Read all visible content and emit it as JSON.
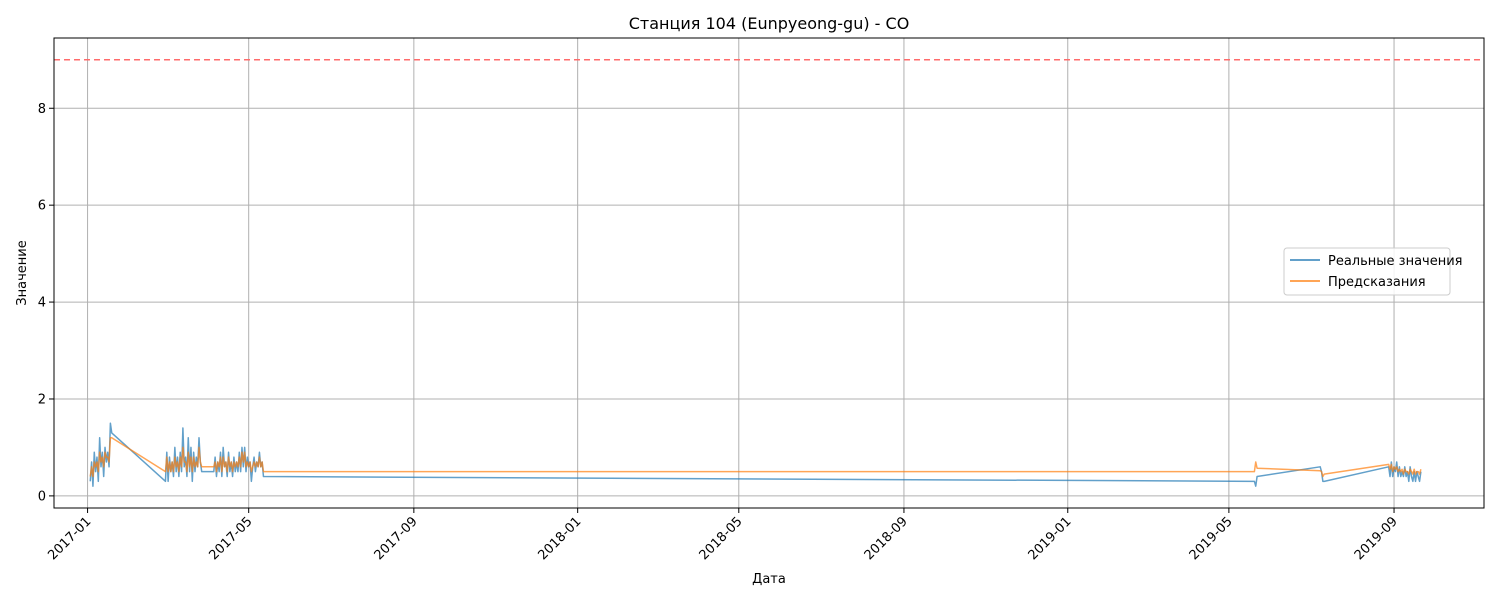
{
  "chart_data": {
    "type": "line",
    "title": "Станция 104 (Eunpyeong-gu) - CO",
    "xlabel": "Дата",
    "ylabel": "Значение",
    "xlim": [
      "2016-12-07",
      "2019-11-07"
    ],
    "ylim": [
      -0.25,
      9.45
    ],
    "x_ticks": [
      "2017-01",
      "2017-05",
      "2017-09",
      "2018-01",
      "2018-05",
      "2018-09",
      "2019-01",
      "2019-05",
      "2019-09"
    ],
    "y_ticks": [
      0,
      2,
      4,
      6,
      8
    ],
    "grid": true,
    "legend_position": "center-right",
    "threshold_line": {
      "value": 9,
      "style": "dashed",
      "color": "#ff6b6b"
    },
    "series": [
      {
        "name": "Реальные значения",
        "color": "#1f77b4",
        "points": [
          [
            "2017-01-03",
            0.3
          ],
          [
            "2017-01-04",
            0.7
          ],
          [
            "2017-01-05",
            0.2
          ],
          [
            "2017-01-06",
            0.9
          ],
          [
            "2017-01-07",
            0.5
          ],
          [
            "2017-01-08",
            0.8
          ],
          [
            "2017-01-09",
            0.3
          ],
          [
            "2017-01-10",
            1.2
          ],
          [
            "2017-01-11",
            0.6
          ],
          [
            "2017-01-12",
            0.9
          ],
          [
            "2017-01-13",
            0.4
          ],
          [
            "2017-01-14",
            1.0
          ],
          [
            "2017-01-15",
            0.7
          ],
          [
            "2017-01-16",
            0.9
          ],
          [
            "2017-01-17",
            0.6
          ],
          [
            "2017-01-18",
            1.5
          ],
          [
            "2017-01-19",
            1.3
          ],
          [
            "2017-02-28",
            0.3
          ],
          [
            "2017-03-01",
            0.9
          ],
          [
            "2017-03-02",
            0.3
          ],
          [
            "2017-03-03",
            0.8
          ],
          [
            "2017-03-04",
            0.5
          ],
          [
            "2017-03-05",
            0.7
          ],
          [
            "2017-03-06",
            0.4
          ],
          [
            "2017-03-07",
            1.0
          ],
          [
            "2017-03-08",
            0.5
          ],
          [
            "2017-03-09",
            0.8
          ],
          [
            "2017-03-10",
            0.4
          ],
          [
            "2017-03-11",
            0.9
          ],
          [
            "2017-03-12",
            0.5
          ],
          [
            "2017-03-13",
            1.4
          ],
          [
            "2017-03-14",
            0.6
          ],
          [
            "2017-03-15",
            0.8
          ],
          [
            "2017-03-16",
            0.4
          ],
          [
            "2017-03-17",
            1.2
          ],
          [
            "2017-03-18",
            0.5
          ],
          [
            "2017-03-19",
            1.0
          ],
          [
            "2017-03-20",
            0.3
          ],
          [
            "2017-03-21",
            0.9
          ],
          [
            "2017-03-22",
            0.5
          ],
          [
            "2017-03-23",
            0.8
          ],
          [
            "2017-03-24",
            0.6
          ],
          [
            "2017-03-25",
            1.2
          ],
          [
            "2017-03-26",
            0.7
          ],
          [
            "2017-03-27",
            0.5
          ],
          [
            "2017-04-05",
            0.5
          ],
          [
            "2017-04-06",
            0.8
          ],
          [
            "2017-04-07",
            0.4
          ],
          [
            "2017-04-08",
            0.7
          ],
          [
            "2017-04-09",
            0.5
          ],
          [
            "2017-04-10",
            0.9
          ],
          [
            "2017-04-11",
            0.4
          ],
          [
            "2017-04-12",
            1.0
          ],
          [
            "2017-04-13",
            0.6
          ],
          [
            "2017-04-14",
            0.7
          ],
          [
            "2017-04-15",
            0.4
          ],
          [
            "2017-04-16",
            0.9
          ],
          [
            "2017-04-17",
            0.5
          ],
          [
            "2017-04-18",
            0.7
          ],
          [
            "2017-04-19",
            0.4
          ],
          [
            "2017-04-20",
            0.8
          ],
          [
            "2017-04-21",
            0.5
          ],
          [
            "2017-04-22",
            0.7
          ],
          [
            "2017-04-23",
            0.5
          ],
          [
            "2017-04-24",
            0.9
          ],
          [
            "2017-04-25",
            0.5
          ],
          [
            "2017-04-26",
            1.0
          ],
          [
            "2017-04-27",
            0.6
          ],
          [
            "2017-04-28",
            1.0
          ],
          [
            "2017-04-29",
            0.5
          ],
          [
            "2017-04-30",
            0.8
          ],
          [
            "2017-05-01",
            0.6
          ],
          [
            "2017-05-02",
            0.7
          ],
          [
            "2017-05-03",
            0.3
          ],
          [
            "2017-05-04",
            0.6
          ],
          [
            "2017-05-05",
            0.8
          ],
          [
            "2017-05-06",
            0.5
          ],
          [
            "2017-05-07",
            0.7
          ],
          [
            "2017-05-08",
            0.6
          ],
          [
            "2017-05-09",
            0.9
          ],
          [
            "2017-05-10",
            0.6
          ],
          [
            "2017-05-11",
            0.7
          ],
          [
            "2017-05-12",
            0.4
          ],
          [
            "2019-05-20",
            0.3
          ],
          [
            "2019-05-21",
            0.2
          ],
          [
            "2019-05-22",
            0.4
          ],
          [
            "2019-07-08",
            0.6
          ],
          [
            "2019-07-09",
            0.5
          ],
          [
            "2019-07-10",
            0.3
          ],
          [
            "2019-07-11",
            0.3
          ],
          [
            "2019-08-28",
            0.6
          ],
          [
            "2019-08-29",
            0.4
          ],
          [
            "2019-08-30",
            0.7
          ],
          [
            "2019-08-31",
            0.4
          ],
          [
            "2019-09-01",
            0.6
          ],
          [
            "2019-09-02",
            0.5
          ],
          [
            "2019-09-03",
            0.7
          ],
          [
            "2019-09-04",
            0.4
          ],
          [
            "2019-09-05",
            0.6
          ],
          [
            "2019-09-06",
            0.4
          ],
          [
            "2019-09-07",
            0.5
          ],
          [
            "2019-09-08",
            0.4
          ],
          [
            "2019-09-09",
            0.6
          ],
          [
            "2019-09-10",
            0.4
          ],
          [
            "2019-09-11",
            0.5
          ],
          [
            "2019-09-12",
            0.3
          ],
          [
            "2019-09-13",
            0.6
          ],
          [
            "2019-09-14",
            0.4
          ],
          [
            "2019-09-15",
            0.3
          ],
          [
            "2019-09-16",
            0.5
          ],
          [
            "2019-09-17",
            0.3
          ],
          [
            "2019-09-18",
            0.5
          ],
          [
            "2019-09-19",
            0.4
          ],
          [
            "2019-09-20",
            0.3
          ],
          [
            "2019-09-21",
            0.5
          ]
        ]
      },
      {
        "name": "Предсказания",
        "color": "#ff7f0e",
        "points": [
          [
            "2017-01-03",
            0.4
          ],
          [
            "2017-01-04",
            0.6
          ],
          [
            "2017-01-05",
            0.4
          ],
          [
            "2017-01-06",
            0.7
          ],
          [
            "2017-01-07",
            0.6
          ],
          [
            "2017-01-08",
            0.7
          ],
          [
            "2017-01-09",
            0.5
          ],
          [
            "2017-01-10",
            0.9
          ],
          [
            "2017-01-11",
            0.7
          ],
          [
            "2017-01-12",
            0.8
          ],
          [
            "2017-01-13",
            0.6
          ],
          [
            "2017-01-14",
            0.9
          ],
          [
            "2017-01-15",
            0.8
          ],
          [
            "2017-01-16",
            0.8
          ],
          [
            "2017-01-17",
            0.7
          ],
          [
            "2017-01-18",
            1.2
          ],
          [
            "2017-01-19",
            1.2
          ],
          [
            "2017-02-28",
            0.5
          ],
          [
            "2017-03-01",
            0.8
          ],
          [
            "2017-03-02",
            0.5
          ],
          [
            "2017-03-03",
            0.7
          ],
          [
            "2017-03-04",
            0.5
          ],
          [
            "2017-03-05",
            0.7
          ],
          [
            "2017-03-06",
            0.5
          ],
          [
            "2017-03-07",
            0.8
          ],
          [
            "2017-03-08",
            0.6
          ],
          [
            "2017-03-09",
            0.7
          ],
          [
            "2017-03-10",
            0.5
          ],
          [
            "2017-03-11",
            0.8
          ],
          [
            "2017-03-12",
            0.6
          ],
          [
            "2017-03-13",
            1.0
          ],
          [
            "2017-03-14",
            0.7
          ],
          [
            "2017-03-15",
            0.7
          ],
          [
            "2017-03-16",
            0.5
          ],
          [
            "2017-03-17",
            0.9
          ],
          [
            "2017-03-18",
            0.6
          ],
          [
            "2017-03-19",
            0.8
          ],
          [
            "2017-03-20",
            0.5
          ],
          [
            "2017-03-21",
            0.8
          ],
          [
            "2017-03-22",
            0.6
          ],
          [
            "2017-03-23",
            0.7
          ],
          [
            "2017-03-24",
            0.6
          ],
          [
            "2017-03-25",
            1.0
          ],
          [
            "2017-03-26",
            0.7
          ],
          [
            "2017-03-27",
            0.6
          ],
          [
            "2017-04-05",
            0.6
          ],
          [
            "2017-04-06",
            0.7
          ],
          [
            "2017-04-07",
            0.5
          ],
          [
            "2017-04-08",
            0.7
          ],
          [
            "2017-04-09",
            0.6
          ],
          [
            "2017-04-10",
            0.8
          ],
          [
            "2017-04-11",
            0.5
          ],
          [
            "2017-04-12",
            0.8
          ],
          [
            "2017-04-13",
            0.6
          ],
          [
            "2017-04-14",
            0.7
          ],
          [
            "2017-04-15",
            0.5
          ],
          [
            "2017-04-16",
            0.8
          ],
          [
            "2017-04-17",
            0.6
          ],
          [
            "2017-04-18",
            0.7
          ],
          [
            "2017-04-19",
            0.5
          ],
          [
            "2017-04-20",
            0.7
          ],
          [
            "2017-04-21",
            0.6
          ],
          [
            "2017-04-22",
            0.7
          ],
          [
            "2017-04-23",
            0.6
          ],
          [
            "2017-04-24",
            0.8
          ],
          [
            "2017-04-25",
            0.6
          ],
          [
            "2017-04-26",
            0.9
          ],
          [
            "2017-04-27",
            0.7
          ],
          [
            "2017-04-28",
            0.9
          ],
          [
            "2017-04-29",
            0.6
          ],
          [
            "2017-04-30",
            0.7
          ],
          [
            "2017-05-01",
            0.6
          ],
          [
            "2017-05-02",
            0.7
          ],
          [
            "2017-05-03",
            0.5
          ],
          [
            "2017-05-04",
            0.6
          ],
          [
            "2017-05-05",
            0.7
          ],
          [
            "2017-05-06",
            0.6
          ],
          [
            "2017-05-07",
            0.7
          ],
          [
            "2017-05-08",
            0.6
          ],
          [
            "2017-05-09",
            0.8
          ],
          [
            "2017-05-10",
            0.6
          ],
          [
            "2017-05-11",
            0.7
          ],
          [
            "2017-05-12",
            0.5
          ],
          [
            "2019-05-20",
            0.5
          ],
          [
            "2019-05-21",
            0.7
          ],
          [
            "2019-05-22",
            0.57
          ],
          [
            "2019-07-08",
            0.52
          ],
          [
            "2019-07-09",
            0.5
          ],
          [
            "2019-07-10",
            0.4
          ],
          [
            "2019-07-11",
            0.45
          ],
          [
            "2019-08-28",
            0.65
          ],
          [
            "2019-08-29",
            0.55
          ],
          [
            "2019-08-30",
            0.65
          ],
          [
            "2019-08-31",
            0.5
          ],
          [
            "2019-09-01",
            0.6
          ],
          [
            "2019-09-02",
            0.55
          ],
          [
            "2019-09-03",
            0.6
          ],
          [
            "2019-09-04",
            0.5
          ],
          [
            "2019-09-05",
            0.55
          ],
          [
            "2019-09-06",
            0.5
          ],
          [
            "2019-09-07",
            0.55
          ],
          [
            "2019-09-08",
            0.45
          ],
          [
            "2019-09-09",
            0.55
          ],
          [
            "2019-09-10",
            0.5
          ],
          [
            "2019-09-11",
            0.5
          ],
          [
            "2019-09-12",
            0.45
          ],
          [
            "2019-09-13",
            0.55
          ],
          [
            "2019-09-14",
            0.5
          ],
          [
            "2019-09-15",
            0.45
          ],
          [
            "2019-09-16",
            0.55
          ],
          [
            "2019-09-17",
            0.45
          ],
          [
            "2019-09-18",
            0.5
          ],
          [
            "2019-09-19",
            0.5
          ],
          [
            "2019-09-20",
            0.45
          ],
          [
            "2019-09-21",
            0.55
          ]
        ]
      }
    ]
  }
}
